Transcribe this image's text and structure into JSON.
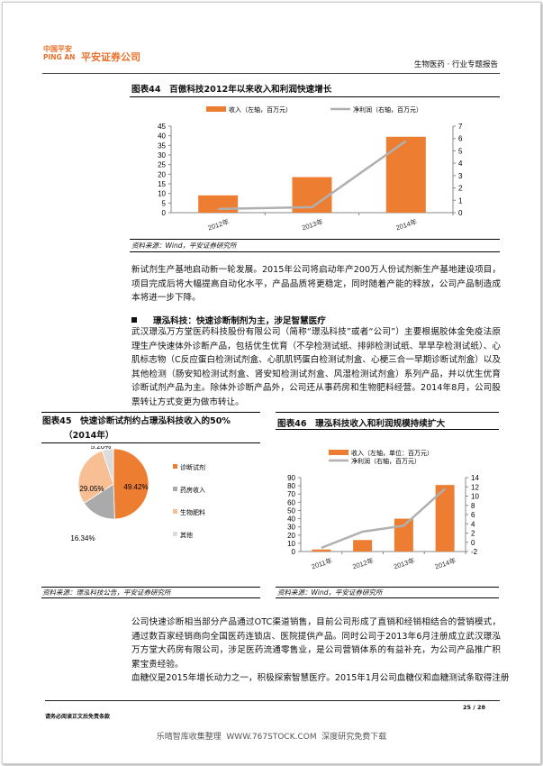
{
  "header": {
    "logo_line1": "中国平安",
    "logo_line2": "PING AN",
    "company": "平安证券公司",
    "section": "生物医药 · 行业专题报告"
  },
  "colors": {
    "brand": "#e8702a",
    "bar": "#ed7d31",
    "line": "#b0b0b0",
    "pie_light": "#f8bf95",
    "pie_gray": "#aaaaaa",
    "pie_pale": "#dcdcdc"
  },
  "fig44": {
    "title": "图表44　百傲科技2012年以来收入和利润快速增长",
    "source": "资料来源：Wind，平安证券研究所",
    "chart_data": {
      "type": "bar",
      "categories": [
        "2012年",
        "2013年",
        "2014年"
      ],
      "series": [
        {
          "name": "收入（左轴，百万元）",
          "type": "bar",
          "axis": "left",
          "values": [
            9,
            18.5,
            39.5
          ]
        },
        {
          "name": "净利润（右轴，百万元）",
          "type": "line",
          "axis": "right",
          "values": [
            0.3,
            0.45,
            5.8
          ]
        }
      ],
      "y_left": {
        "range": [
          0,
          45
        ],
        "ticks": [
          0,
          5,
          10,
          15,
          20,
          25,
          30,
          35,
          40,
          45
        ]
      },
      "y_right": {
        "range": [
          0,
          7
        ],
        "ticks": [
          0,
          1,
          2,
          3,
          4,
          5,
          6,
          7
        ]
      },
      "legend": "top"
    }
  },
  "para1": "新试剂生产基地启动新一轮发展。2015年公司将启动年产200万人份试剂新生产基地建设项目，项目完成后将大幅提高自动化水平，产品品质将更稳定，同时随着产能的释放，公司产品制造成本将进一步下降。",
  "section_heading": "璟泓科技：快速诊断制剂为主，涉足智慧医疗",
  "para2": "武汉璟泓万方堂医药科技股份有限公司（简称“璟泓科技”或者“公司”）主要根据胶体金免疫法原理生产快速体外诊断产品，包括优生优育（不孕检测试纸、排卵检测试纸、早早孕检测试纸）、心肌标志物（C反应蛋白检测试剂盒、心肌肌钙蛋白检测试剂盒、心梗三合一早期诊断试剂盒）以及其他检测（肠安知检测试剂盒、肾安知检测试剂盒、风湿检测试剂盒）系列产品，并以优生优育诊断试剂产品为主。除体外诊断产品外，公司还从事药房和生物肥料经营。2014年8月，公司股票转让方式变更为做市转让。",
  "fig45": {
    "title_line1": "图表45　快速诊断试剂约占璟泓科技收入的50%",
    "title_line2": "（2014年）",
    "source": "资料来源：璟泓科技公告，平安证券研究所",
    "chart_data": {
      "type": "pie",
      "labels": [
        "诊断试剂",
        "药房收入",
        "生物肥料",
        "其他"
      ],
      "values": [
        49.42,
        16.34,
        29.05,
        5.2
      ],
      "value_labels": [
        "49.42%",
        "16.34%",
        "29.05%",
        "5.20%"
      ],
      "legend": "right"
    }
  },
  "fig46": {
    "title": "图表46　璟泓科技收入和利润规模持续扩大",
    "source": "资料来源：Wind，平安证券研究所",
    "chart_data": {
      "type": "bar",
      "categories": [
        "2011年",
        "2012年",
        "2013年",
        "2014年"
      ],
      "series": [
        {
          "name": "收入（左轴，单位：百万元）",
          "type": "bar",
          "axis": "left",
          "values": [
            2.5,
            14,
            40,
            81
          ]
        },
        {
          "name": "净利润（右轴，百万元）",
          "type": "line",
          "axis": "right",
          "values": [
            -1.2,
            2.3,
            3.6,
            11.6
          ]
        }
      ],
      "y_left": {
        "range": [
          0,
          90
        ],
        "ticks": [
          0,
          10,
          20,
          30,
          40,
          50,
          60,
          70,
          80,
          90
        ]
      },
      "y_right": {
        "range": [
          -2,
          14
        ],
        "ticks": [
          -2,
          0,
          2,
          4,
          6,
          8,
          10,
          12,
          14
        ]
      },
      "legend": "top"
    }
  },
  "para3": "公司快速诊断相当部分产品通过OTC渠道销售，目前公司形成了直销和经销相结合的营销模式，通过数百家经销商向全国医药连锁店、医院提供产品。同时公司于2013年6月注册成立武汉璟泓万方堂大药房有限公司，涉足医药流通零售业，是公司营销体系的有益补充，为公司产品推广积累宝贵经验。",
  "para4": "血糖仪是2015年增长动力之一，积极探索智慧医疗。2015年1月公司血糖仪和血糖测试条取得注册",
  "footer": {
    "page": "25 / 28",
    "disclaimer": "请务必阅读正文后免责条款",
    "watermark": "乐晴智库收集整理  WWW.767STOCK.COM  深度研究免费下载"
  }
}
